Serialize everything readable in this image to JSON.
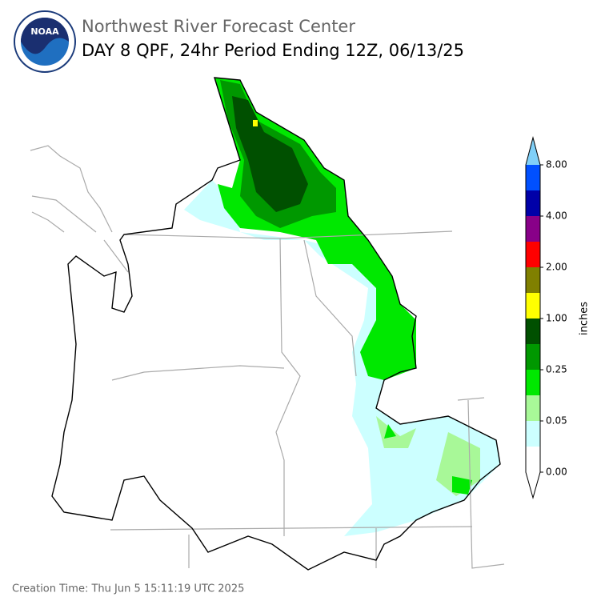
{
  "header": {
    "logo_text": "NOAA",
    "title": "Northwest River Forecast Center",
    "subtitle": "DAY 8 QPF, 24hr Period Ending 12Z, 06/13/25"
  },
  "colorbar": {
    "label": "inches",
    "under_color": "#ffffff",
    "over_color": "#80d0f8",
    "colors": [
      "#ffffff",
      "#ccffff",
      "#a8f898",
      "#00e800",
      "#009800",
      "#005000",
      "#ffff00",
      "#808000",
      "#ff0000",
      "#880088",
      "#0000a8",
      "#0050ff"
    ],
    "ticks": [
      "0.00",
      "0.05",
      "0.25",
      "1.00",
      "2.00",
      "4.00",
      "8.00"
    ]
  },
  "footer": {
    "creation_time": "Creation Time: Thu Jun 5 15:11:19 UTC 2025"
  }
}
